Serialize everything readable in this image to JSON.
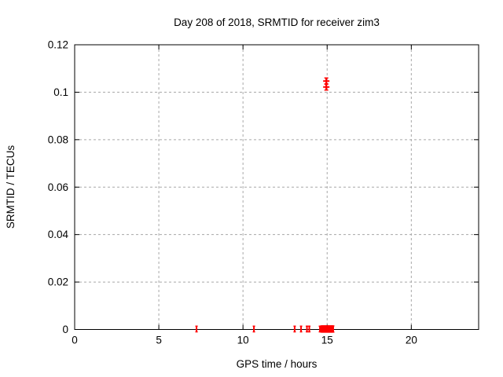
{
  "page": {
    "title": "Day 208 of 2018, SRMTID for receiver zim3"
  },
  "chart_data": {
    "type": "scatter",
    "title": "Day 208 of 2018, SRMTID for receiver zim3",
    "xlabel": "GPS time / hours",
    "ylabel": "SRMTID / TECUs",
    "xlim": [
      0,
      24
    ],
    "ylim": [
      0,
      0.12
    ],
    "xticks": {
      "values": [
        0,
        5,
        10,
        15,
        20
      ],
      "labels": [
        "0",
        "5",
        "10",
        "15",
        "20"
      ]
    },
    "yticks": {
      "values": [
        0,
        0.02,
        0.04,
        0.06,
        0.08,
        0.1,
        0.12
      ],
      "labels": [
        "0",
        "0.02",
        "0.04",
        "0.06",
        "0.08",
        "0.1",
        "0.12"
      ]
    },
    "grid": {
      "show": true,
      "color": "#a8a8a8",
      "dash": "3,3"
    },
    "border_color": "#000000",
    "legend": "none",
    "series": [
      {
        "name": "SRMTID",
        "color": "#ff0000",
        "style": "yerrorbars",
        "points": [
          {
            "x": 7.24,
            "y": 0.0002,
            "yerr": 0.0012,
            "marker": "tick"
          },
          {
            "x": 10.65,
            "y": 0.0002,
            "yerr": 0.0012,
            "marker": "tick"
          },
          {
            "x": 13.07,
            "y": 0.0002,
            "yerr": 0.0012,
            "marker": "tick"
          },
          {
            "x": 13.45,
            "y": 0.0002,
            "yerr": 0.0012,
            "marker": "tick"
          },
          {
            "x": 13.8,
            "y": 0.0002,
            "yerr": 0.0012,
            "marker": "tick"
          },
          {
            "x": 13.94,
            "y": 0.0002,
            "yerr": 0.0012,
            "marker": "tick"
          },
          {
            "x": 14.57,
            "y": 0.0002,
            "yerr": 0.0012,
            "marker": "tick"
          },
          {
            "x": 14.66,
            "y": 0.0002,
            "yerr": 0.0013,
            "marker": "tick"
          },
          {
            "x": 14.71,
            "y": 0.0002,
            "yerr": 0.0013,
            "marker": "tick"
          },
          {
            "x": 14.76,
            "y": 0.0002,
            "yerr": 0.0013,
            "marker": "tick"
          },
          {
            "x": 14.81,
            "y": 0.0002,
            "yerr": 0.0013,
            "marker": "tick"
          },
          {
            "x": 14.86,
            "y": 0.0002,
            "yerr": 0.0013,
            "marker": "tick"
          },
          {
            "x": 14.91,
            "y": 0.0002,
            "yerr": 0.0013,
            "marker": "tick"
          },
          {
            "x": 14.96,
            "y": 0.0002,
            "yerr": 0.0013,
            "marker": "tick"
          },
          {
            "x": 15.01,
            "y": 0.0002,
            "yerr": 0.0013,
            "marker": "tick"
          },
          {
            "x": 15.06,
            "y": 0.0002,
            "yerr": 0.0013,
            "marker": "tick"
          },
          {
            "x": 15.11,
            "y": 0.0002,
            "yerr": 0.0013,
            "marker": "tick"
          },
          {
            "x": 15.16,
            "y": 0.0002,
            "yerr": 0.0013,
            "marker": "tick"
          },
          {
            "x": 15.21,
            "y": 0.0002,
            "yerr": 0.0013,
            "marker": "tick"
          },
          {
            "x": 15.26,
            "y": 0.0002,
            "yerr": 0.0013,
            "marker": "tick"
          },
          {
            "x": 15.31,
            "y": 0.0002,
            "yerr": 0.0013,
            "marker": "tick"
          },
          {
            "x": 15.36,
            "y": 0.0002,
            "yerr": 0.0013,
            "marker": "tick"
          },
          {
            "x": 14.95,
            "y": 0.1047,
            "yerr": 0.0013,
            "marker": "plus"
          },
          {
            "x": 14.95,
            "y": 0.1022,
            "yerr": 0.0013,
            "marker": "plus"
          }
        ]
      }
    ]
  }
}
